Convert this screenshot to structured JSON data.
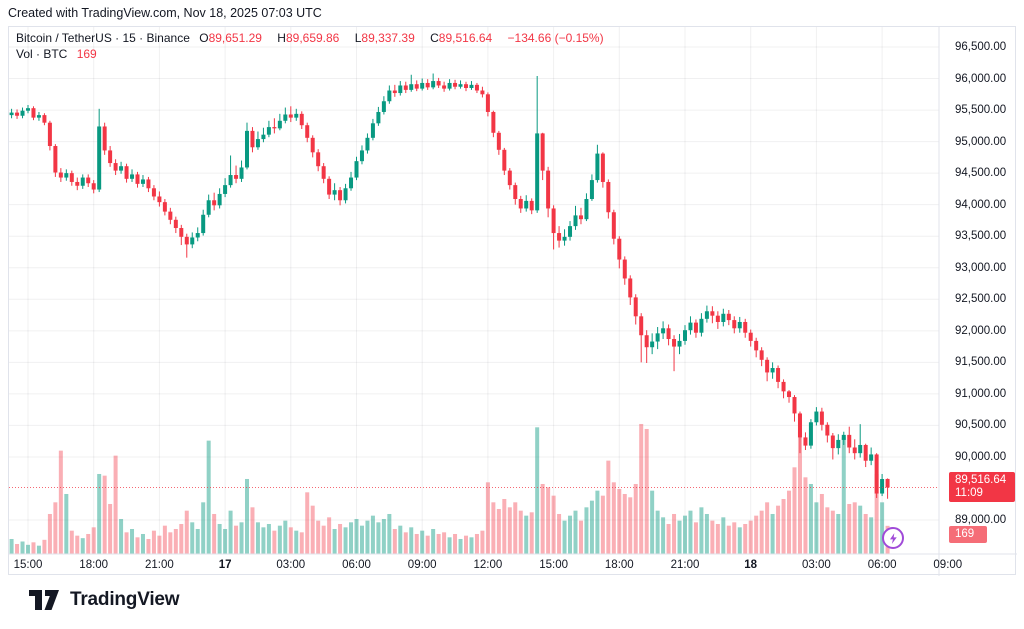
{
  "created_line": "Created with TradingView.com, Nov 18, 2025 07:03 UTC",
  "colors": {
    "up": "#089981",
    "down": "#F23645",
    "text": "#131722",
    "grid": "rgba(42,46,57,0.07)",
    "frame": "#e0e3eb",
    "vol_up": "rgba(8,153,129,0.45)",
    "vol_down": "rgba(242,54,69,0.40)",
    "last_price_tag": "#F23645",
    "volume_tag": "#f56d77",
    "flash_purple": "#a04ad8"
  },
  "legend": {
    "symbol_line": "Bitcoin / TetherUS · 15 · Binance",
    "o_label": "O",
    "o_value": "89,651.29",
    "h_label": "H",
    "h_value": "89,659.86",
    "l_label": "L",
    "l_value": "89,337.39",
    "c_label": "C",
    "c_value": "89,516.64",
    "change": "−134.66 (−0.15%)",
    "vol_label": "Vol · BTC",
    "vol_value": "169"
  },
  "price_axis": {
    "last_price_label": "89,516.64",
    "countdown": "11:09",
    "volume_label": "169"
  },
  "footer": {
    "brand": "TradingView"
  },
  "chart_data": {
    "type": "candlestick",
    "title": "Bitcoin / TetherUS",
    "exchange": "Binance",
    "interval": "15",
    "last_bar": {
      "open": 89651.29,
      "high": 89659.86,
      "low": 89337.39,
      "close": 89516.64,
      "change": -134.66,
      "change_pct": -0.15,
      "volume_btc": 169,
      "countdown": "11:09"
    },
    "ylim": [
      88900,
      96650
    ],
    "price_ticks": [
      {
        "p": 96500,
        "label": "96,500.00"
      },
      {
        "p": 96000,
        "label": "96,000.00"
      },
      {
        "p": 95500,
        "label": "95,500.00"
      },
      {
        "p": 95000,
        "label": "95,000.00"
      },
      {
        "p": 94500,
        "label": "94,500.00"
      },
      {
        "p": 94000,
        "label": "94,000.00"
      },
      {
        "p": 93500,
        "label": "93,500.00"
      },
      {
        "p": 93000,
        "label": "93,000.00"
      },
      {
        "p": 92500,
        "label": "92,500.00"
      },
      {
        "p": 92000,
        "label": "92,000.00"
      },
      {
        "p": 91500,
        "label": "91,500.00"
      },
      {
        "p": 91000,
        "label": "91,000.00"
      },
      {
        "p": 90500,
        "label": "90,500.00"
      },
      {
        "p": 90000,
        "label": "90,000.00"
      },
      {
        "p": 89000,
        "label": "89,000.00"
      }
    ],
    "time_ticks": [
      {
        "i": 3,
        "label": "15:00",
        "bold": false
      },
      {
        "i": 15,
        "label": "18:00",
        "bold": false
      },
      {
        "i": 27,
        "label": "21:00",
        "bold": false
      },
      {
        "i": 39,
        "label": "17",
        "bold": true
      },
      {
        "i": 51,
        "label": "03:00",
        "bold": false
      },
      {
        "i": 63,
        "label": "06:00",
        "bold": false
      },
      {
        "i": 75,
        "label": "09:00",
        "bold": false
      },
      {
        "i": 87,
        "label": "12:00",
        "bold": false
      },
      {
        "i": 99,
        "label": "15:00",
        "bold": false
      },
      {
        "i": 111,
        "label": "18:00",
        "bold": false
      },
      {
        "i": 123,
        "label": "21:00",
        "bold": false
      },
      {
        "i": 135,
        "label": "18",
        "bold": true
      },
      {
        "i": 147,
        "label": "03:00",
        "bold": false
      },
      {
        "i": 159,
        "label": "06:00",
        "bold": false
      },
      {
        "i": 171,
        "label": "09:00",
        "bold": false
      }
    ],
    "candles": [
      [
        95420,
        95520,
        95370,
        95460
      ],
      [
        95460,
        95510,
        95360,
        95410
      ],
      [
        95410,
        95540,
        95370,
        95490
      ],
      [
        95490,
        95580,
        95450,
        95530
      ],
      [
        95530,
        95560,
        95340,
        95380
      ],
      [
        95380,
        95470,
        95330,
        95420
      ],
      [
        95420,
        95450,
        95260,
        95300
      ],
      [
        95300,
        95330,
        94860,
        94930
      ],
      [
        94930,
        94960,
        94440,
        94510
      ],
      [
        94510,
        94580,
        94360,
        94430
      ],
      [
        94430,
        94560,
        94380,
        94500
      ],
      [
        94500,
        94540,
        94300,
        94360
      ],
      [
        94360,
        94430,
        94230,
        94300
      ],
      [
        94300,
        94480,
        94250,
        94430
      ],
      [
        94430,
        94480,
        94280,
        94340
      ],
      [
        94340,
        94390,
        94180,
        94240
      ],
      [
        94240,
        95520,
        94200,
        95240
      ],
      [
        95240,
        95300,
        94790,
        94860
      ],
      [
        94860,
        94930,
        94600,
        94660
      ],
      [
        94660,
        94720,
        94470,
        94540
      ],
      [
        94540,
        94680,
        94490,
        94610
      ],
      [
        94610,
        94650,
        94350,
        94410
      ],
      [
        94410,
        94560,
        94360,
        94480
      ],
      [
        94480,
        94520,
        94270,
        94330
      ],
      [
        94330,
        94470,
        94280,
        94400
      ],
      [
        94400,
        94440,
        94200,
        94260
      ],
      [
        94260,
        94310,
        94070,
        94130
      ],
      [
        94130,
        94210,
        93970,
        94040
      ],
      [
        94040,
        94090,
        93830,
        93890
      ],
      [
        93890,
        93950,
        93690,
        93760
      ],
      [
        93760,
        93810,
        93550,
        93630
      ],
      [
        93630,
        93680,
        93360,
        93490
      ],
      [
        93490,
        93540,
        93160,
        93370
      ],
      [
        93370,
        93560,
        93310,
        93480
      ],
      [
        93480,
        93640,
        93420,
        93550
      ],
      [
        93550,
        93920,
        93510,
        93840
      ],
      [
        93840,
        94160,
        93800,
        94070
      ],
      [
        94070,
        94190,
        93910,
        93990
      ],
      [
        93990,
        94260,
        93940,
        94170
      ],
      [
        94170,
        94420,
        94120,
        94310
      ],
      [
        94310,
        94780,
        94270,
        94470
      ],
      [
        94470,
        94620,
        94340,
        94410
      ],
      [
        94410,
        94700,
        94360,
        94590
      ],
      [
        94590,
        95300,
        94560,
        95170
      ],
      [
        95170,
        95230,
        94830,
        94910
      ],
      [
        94910,
        95160,
        94870,
        95040
      ],
      [
        95040,
        95220,
        94990,
        95110
      ],
      [
        95110,
        95330,
        95070,
        95230
      ],
      [
        95230,
        95370,
        95130,
        95210
      ],
      [
        95210,
        95440,
        95180,
        95330
      ],
      [
        95330,
        95540,
        95290,
        95430
      ],
      [
        95430,
        95560,
        95310,
        95380
      ],
      [
        95380,
        95520,
        95330,
        95440
      ],
      [
        95440,
        95480,
        95200,
        95260
      ],
      [
        95260,
        95300,
        94990,
        95060
      ],
      [
        95060,
        95100,
        94750,
        94830
      ],
      [
        94830,
        94880,
        94530,
        94610
      ],
      [
        94610,
        94660,
        94340,
        94410
      ],
      [
        94410,
        94450,
        94090,
        94160
      ],
      [
        94160,
        94340,
        94070,
        94230
      ],
      [
        94230,
        94280,
        93990,
        94070
      ],
      [
        94070,
        94330,
        94020,
        94260
      ],
      [
        94260,
        94520,
        94220,
        94430
      ],
      [
        94430,
        94760,
        94390,
        94690
      ],
      [
        94690,
        94940,
        94640,
        94860
      ],
      [
        94860,
        95130,
        94810,
        95060
      ],
      [
        95060,
        95360,
        95020,
        95290
      ],
      [
        95290,
        95550,
        95250,
        95470
      ],
      [
        95470,
        95720,
        95430,
        95640
      ],
      [
        95640,
        95890,
        95600,
        95810
      ],
      [
        95810,
        95900,
        95710,
        95770
      ],
      [
        95770,
        95960,
        95730,
        95890
      ],
      [
        95890,
        95950,
        95770,
        95820
      ],
      [
        95820,
        96060,
        95790,
        95910
      ],
      [
        95910,
        95970,
        95800,
        95840
      ],
      [
        95840,
        96000,
        95810,
        95930
      ],
      [
        95930,
        95990,
        95820,
        95860
      ],
      [
        95860,
        96080,
        95830,
        95960
      ],
      [
        95960,
        96010,
        95850,
        95890
      ],
      [
        95890,
        95950,
        95790,
        95840
      ],
      [
        95840,
        95990,
        95810,
        95930
      ],
      [
        95930,
        95980,
        95830,
        95870
      ],
      [
        95870,
        95970,
        95840,
        95910
      ],
      [
        95910,
        95950,
        95800,
        95850
      ],
      [
        95850,
        95960,
        95820,
        95900
      ],
      [
        95900,
        95930,
        95770,
        95810
      ],
      [
        95810,
        95870,
        95700,
        95750
      ],
      [
        95750,
        95780,
        95400,
        95470
      ],
      [
        95470,
        95490,
        95070,
        95140
      ],
      [
        95140,
        95170,
        94790,
        94870
      ],
      [
        94870,
        94900,
        94470,
        94540
      ],
      [
        94540,
        94580,
        94240,
        94310
      ],
      [
        94310,
        94350,
        94000,
        94090
      ],
      [
        94090,
        94140,
        93870,
        93940
      ],
      [
        93940,
        94150,
        93890,
        94060
      ],
      [
        94060,
        94100,
        93850,
        93910
      ],
      [
        93910,
        96040,
        93870,
        95130
      ],
      [
        95130,
        95140,
        94390,
        94540
      ],
      [
        94540,
        94600,
        93800,
        93940
      ],
      [
        93940,
        93990,
        93290,
        93550
      ],
      [
        93550,
        93660,
        93320,
        93430
      ],
      [
        93430,
        93610,
        93350,
        93490
      ],
      [
        93490,
        93740,
        93430,
        93660
      ],
      [
        93660,
        93980,
        93600,
        93830
      ],
      [
        93830,
        93950,
        93690,
        93770
      ],
      [
        93770,
        94180,
        93740,
        94090
      ],
      [
        94090,
        94480,
        94060,
        94390
      ],
      [
        94390,
        94950,
        94350,
        94810
      ],
      [
        94810,
        94830,
        94270,
        94360
      ],
      [
        94360,
        94400,
        93780,
        93880
      ],
      [
        93880,
        93920,
        93370,
        93460
      ],
      [
        93460,
        93500,
        92990,
        93130
      ],
      [
        93130,
        93180,
        92730,
        92830
      ],
      [
        92830,
        92880,
        92410,
        92530
      ],
      [
        92530,
        92580,
        92100,
        92230
      ],
      [
        92230,
        92280,
        91500,
        91930
      ],
      [
        91930,
        92010,
        91490,
        91740
      ],
      [
        91740,
        91960,
        91630,
        91830
      ],
      [
        91830,
        92060,
        91710,
        91960
      ],
      [
        91960,
        92150,
        91870,
        92040
      ],
      [
        92040,
        92100,
        91770,
        91870
      ],
      [
        91870,
        91930,
        91360,
        91750
      ],
      [
        91750,
        91950,
        91630,
        91840
      ],
      [
        91840,
        92090,
        91780,
        92010
      ],
      [
        92010,
        92230,
        91940,
        92130
      ],
      [
        92130,
        92180,
        91890,
        91970
      ],
      [
        91970,
        92280,
        91910,
        92190
      ],
      [
        92190,
        92400,
        92130,
        92310
      ],
      [
        92310,
        92390,
        92120,
        92240
      ],
      [
        92240,
        92310,
        92030,
        92140
      ],
      [
        92140,
        92350,
        92070,
        92270
      ],
      [
        92270,
        92330,
        92090,
        92170
      ],
      [
        92170,
        92230,
        91960,
        92040
      ],
      [
        92040,
        92220,
        91970,
        92140
      ],
      [
        92140,
        92190,
        91890,
        91970
      ],
      [
        91970,
        92020,
        91750,
        91840
      ],
      [
        91840,
        91890,
        91580,
        91690
      ],
      [
        91690,
        91740,
        91440,
        91540
      ],
      [
        91540,
        91580,
        91200,
        91340
      ],
      [
        91340,
        91500,
        91240,
        91410
      ],
      [
        91410,
        91450,
        91090,
        91190
      ],
      [
        91190,
        91230,
        90930,
        91040
      ],
      [
        91040,
        91060,
        90860,
        90950
      ],
      [
        90950,
        90980,
        90560,
        90690
      ],
      [
        90690,
        90720,
        90060,
        90310
      ],
      [
        90310,
        90390,
        90110,
        90180
      ],
      [
        90180,
        90600,
        90130,
        90550
      ],
      [
        90550,
        90790,
        90500,
        90720
      ],
      [
        90720,
        90780,
        90420,
        90510
      ],
      [
        90510,
        90550,
        90230,
        90340
      ],
      [
        90340,
        90380,
        89960,
        90140
      ],
      [
        90140,
        90360,
        90040,
        90270
      ],
      [
        90270,
        90400,
        90190,
        90350
      ],
      [
        90350,
        90480,
        90060,
        90150
      ],
      [
        90150,
        90280,
        89960,
        90060
      ],
      [
        90060,
        90520,
        89990,
        90190
      ],
      [
        90190,
        90210,
        89840,
        89940
      ],
      [
        89940,
        90150,
        89870,
        90040
      ],
      [
        90040,
        90060,
        89350,
        89420
      ],
      [
        89420,
        89730,
        89380,
        89650
      ],
      [
        89651.29,
        89659.86,
        89337.39,
        89516.64
      ]
    ],
    "volumes": [
      90,
      60,
      75,
      55,
      70,
      50,
      85,
      240,
      310,
      620,
      360,
      140,
      110,
      95,
      120,
      160,
      480,
      470,
      300,
      590,
      210,
      130,
      150,
      100,
      120,
      90,
      140,
      110,
      170,
      130,
      150,
      180,
      260,
      190,
      150,
      310,
      680,
      240,
      180,
      150,
      260,
      170,
      190,
      450,
      280,
      190,
      160,
      180,
      140,
      170,
      200,
      160,
      140,
      130,
      370,
      290,
      200,
      170,
      220,
      150,
      180,
      160,
      190,
      210,
      170,
      200,
      230,
      190,
      210,
      240,
      150,
      170,
      130,
      160,
      120,
      140,
      110,
      150,
      120,
      130,
      100,
      120,
      90,
      110,
      100,
      120,
      140,
      430,
      310,
      270,
      330,
      280,
      310,
      260,
      230,
      250,
      760,
      420,
      400,
      350,
      240,
      200,
      230,
      260,
      200,
      280,
      320,
      380,
      350,
      560,
      430,
      390,
      360,
      340,
      420,
      780,
      750,
      380,
      260,
      220,
      180,
      240,
      200,
      230,
      260,
      190,
      280,
      240,
      200,
      180,
      220,
      170,
      190,
      160,
      180,
      200,
      230,
      260,
      310,
      240,
      290,
      330,
      380,
      520,
      730,
      460,
      420,
      310,
      360,
      280,
      260,
      240,
      700,
      300,
      310,
      290,
      240,
      220,
      480,
      310,
      169
    ]
  }
}
